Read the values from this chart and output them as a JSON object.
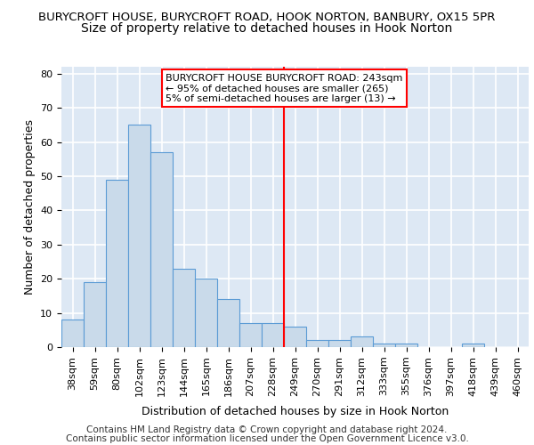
{
  "title_line1": "BURYCROFT HOUSE, BURYCROFT ROAD, HOOK NORTON, BANBURY, OX15 5PR",
  "title_line2": "Size of property relative to detached houses in Hook Norton",
  "xlabel": "Distribution of detached houses by size in Hook Norton",
  "ylabel": "Number of detached properties",
  "categories": [
    "38sqm",
    "59sqm",
    "80sqm",
    "102sqm",
    "123sqm",
    "144sqm",
    "165sqm",
    "186sqm",
    "207sqm",
    "228sqm",
    "249sqm",
    "270sqm",
    "291sqm",
    "312sqm",
    "333sqm",
    "355sqm",
    "376sqm",
    "397sqm",
    "418sqm",
    "439sqm",
    "460sqm"
  ],
  "values": [
    8,
    19,
    49,
    65,
    57,
    23,
    20,
    14,
    7,
    7,
    6,
    2,
    2,
    3,
    1,
    1,
    0,
    0,
    1,
    0,
    0
  ],
  "bar_color": "#c9daea",
  "bar_edge_color": "#5b9bd5",
  "vline_x_index": 10,
  "vline_color": "red",
  "annotation_text": "BURYCROFT HOUSE BURYCROFT ROAD: 243sqm\n← 95% of detached houses are smaller (265)\n5% of semi-detached houses are larger (13) →",
  "annotation_box_color": "white",
  "annotation_box_edge_color": "red",
  "ylim": [
    0,
    82
  ],
  "yticks": [
    0,
    10,
    20,
    30,
    40,
    50,
    60,
    70,
    80
  ],
  "footer_line1": "Contains HM Land Registry data © Crown copyright and database right 2024.",
  "footer_line2": "Contains public sector information licensed under the Open Government Licence v3.0.",
  "background_color": "#dde8f4",
  "grid_color": "#ffffff",
  "title_fontsize": 9.5,
  "subtitle_fontsize": 10,
  "axis_label_fontsize": 9,
  "tick_fontsize": 8,
  "annotation_fontsize": 8,
  "footer_fontsize": 7.5
}
